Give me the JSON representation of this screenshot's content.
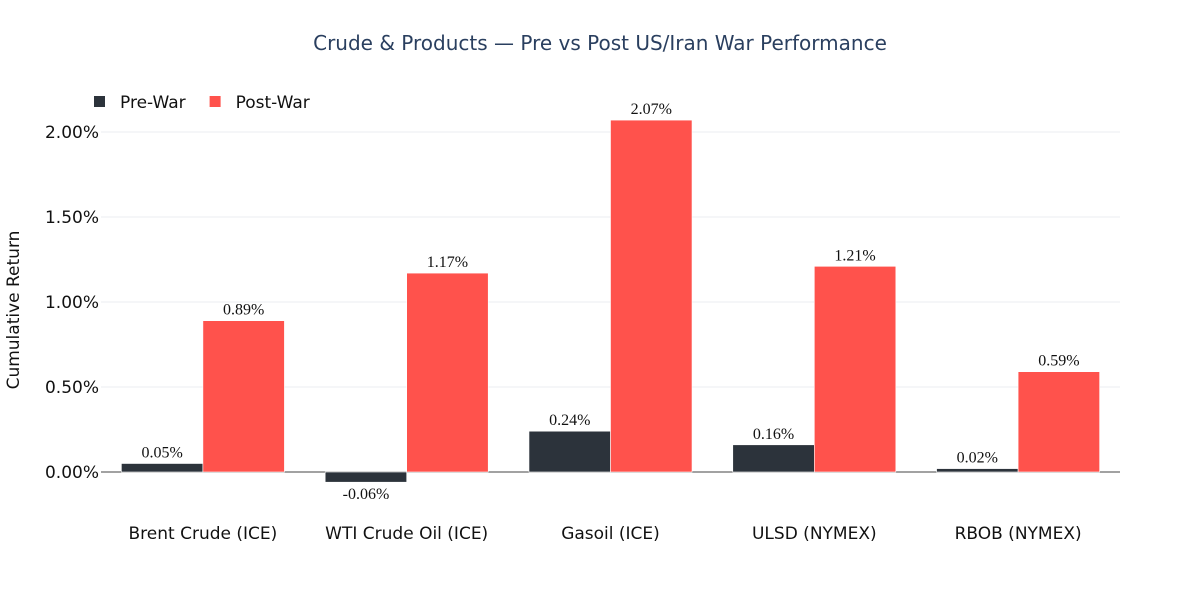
{
  "chart_data": {
    "type": "bar",
    "title": "Crude & Products — Pre vs Post US/Iran War Performance",
    "xlabel": "",
    "ylabel": "Cumulative Return",
    "categories": [
      "Brent Crude (ICE)",
      "WTI Crude Oil (ICE)",
      "Gasoil (ICE)",
      "ULSD (NYMEX)",
      "RBOB (NYMEX)"
    ],
    "series": [
      {
        "name": "Pre-War",
        "color": "#2c333b",
        "values": [
          0.05,
          -0.06,
          0.24,
          0.16,
          0.02
        ],
        "labels": [
          "0.05%",
          "-0.06%",
          "0.24%",
          "0.16%",
          "0.02%"
        ]
      },
      {
        "name": "Post-War",
        "color": "#ff524c",
        "values": [
          0.89,
          1.17,
          2.07,
          1.21,
          0.59
        ],
        "labels": [
          "0.89%",
          "1.17%",
          "2.07%",
          "1.21%",
          "0.59%"
        ]
      }
    ],
    "ylim": [
      -0.1,
      2.2
    ],
    "yticks": [
      0,
      0.5,
      1.0,
      1.5,
      2.0
    ],
    "ytick_labels": [
      "0.00%",
      "0.50%",
      "1.00%",
      "1.50%",
      "2.00%"
    ],
    "grid": true,
    "legend_position": "top-left"
  }
}
